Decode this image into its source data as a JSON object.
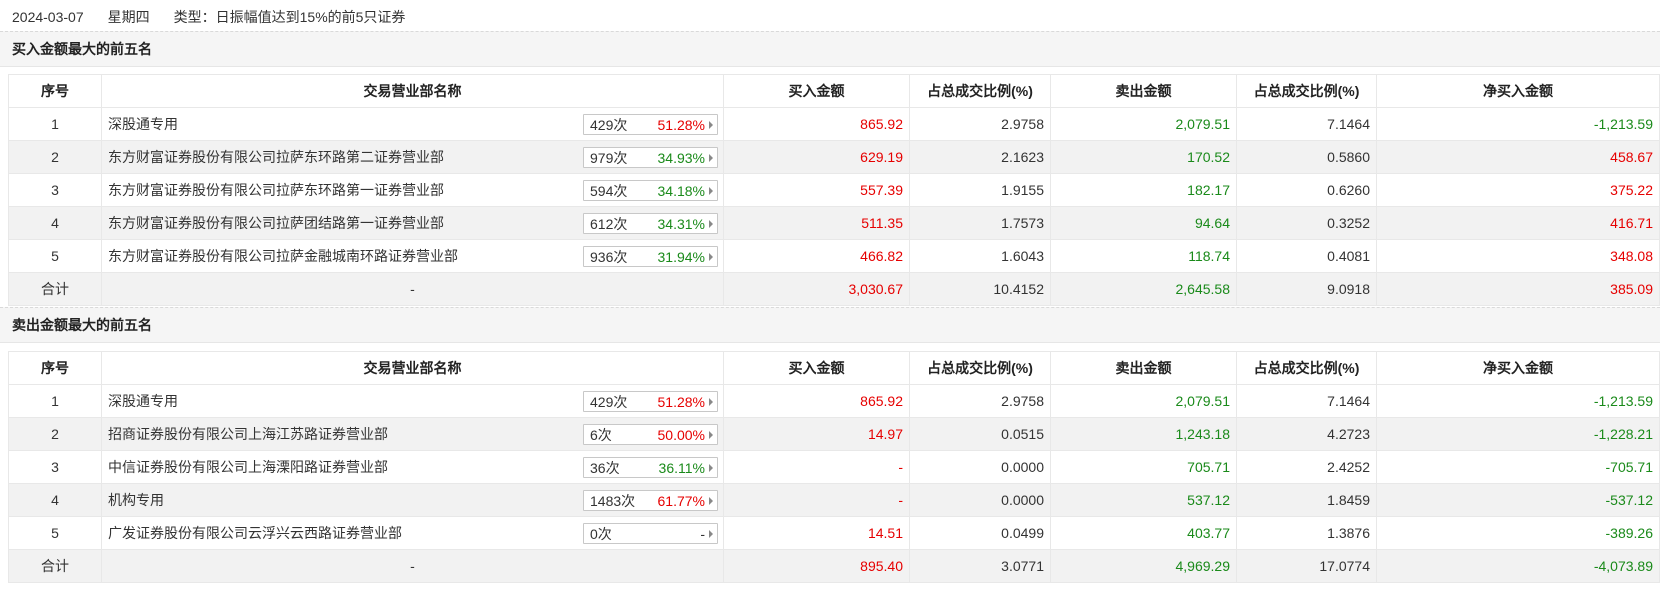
{
  "header": {
    "date": "2024-03-07",
    "weekday": "星期四",
    "type_label": "类型：日振幅值达到15%的前5只证券"
  },
  "columns": [
    "序号",
    "交易营业部名称",
    "买入金额",
    "占总成交比例(%)",
    "卖出金额",
    "占总成交比例(%)",
    "净买入金额"
  ],
  "colors": {
    "up": "#e60000",
    "down": "#1a8a1a",
    "alt_row": "#f2f2f2"
  },
  "buy_section": {
    "title": "买入金额最大的前五名",
    "rows": [
      {
        "no": "1",
        "name": "深股通专用",
        "count": "429次",
        "pct": "51.28%",
        "buy": "865.92",
        "buy_ratio": "2.9758",
        "sell": "2,079.51",
        "sell_ratio": "7.1464",
        "net": "-1,213.59"
      },
      {
        "no": "2",
        "name": "东方财富证券股份有限公司拉萨东环路第二证券营业部",
        "count": "979次",
        "pct": "34.93%",
        "buy": "629.19",
        "buy_ratio": "2.1623",
        "sell": "170.52",
        "sell_ratio": "0.5860",
        "net": "458.67"
      },
      {
        "no": "3",
        "name": "东方财富证券股份有限公司拉萨东环路第一证券营业部",
        "count": "594次",
        "pct": "34.18%",
        "buy": "557.39",
        "buy_ratio": "1.9155",
        "sell": "182.17",
        "sell_ratio": "0.6260",
        "net": "375.22"
      },
      {
        "no": "4",
        "name": "东方财富证券股份有限公司拉萨团结路第一证券营业部",
        "count": "612次",
        "pct": "34.31%",
        "buy": "511.35",
        "buy_ratio": "1.7573",
        "sell": "94.64",
        "sell_ratio": "0.3252",
        "net": "416.71"
      },
      {
        "no": "5",
        "name": "东方财富证券股份有限公司拉萨金融城南环路证券营业部",
        "count": "936次",
        "pct": "31.94%",
        "buy": "466.82",
        "buy_ratio": "1.6043",
        "sell": "118.74",
        "sell_ratio": "0.4081",
        "net": "348.08"
      }
    ],
    "total": {
      "label": "合计",
      "name": "-",
      "buy": "3,030.67",
      "buy_ratio": "10.4152",
      "sell": "2,645.58",
      "sell_ratio": "9.0918",
      "net": "385.09"
    }
  },
  "sell_section": {
    "title": "卖出金额最大的前五名",
    "rows": [
      {
        "no": "1",
        "name": "深股通专用",
        "count": "429次",
        "pct": "51.28%",
        "buy": "865.92",
        "buy_ratio": "2.9758",
        "sell": "2,079.51",
        "sell_ratio": "7.1464",
        "net": "-1,213.59"
      },
      {
        "no": "2",
        "name": "招商证券股份有限公司上海江苏路证券营业部",
        "count": "6次",
        "pct": "50.00%",
        "buy": "14.97",
        "buy_ratio": "0.0515",
        "sell": "1,243.18",
        "sell_ratio": "4.2723",
        "net": "-1,228.21"
      },
      {
        "no": "3",
        "name": "中信证券股份有限公司上海溧阳路证券营业部",
        "count": "36次",
        "pct": "36.11%",
        "buy": "-",
        "buy_ratio": "0.0000",
        "sell": "705.71",
        "sell_ratio": "2.4252",
        "net": "-705.71"
      },
      {
        "no": "4",
        "name": "机构专用",
        "count": "1483次",
        "pct": "61.77%",
        "buy": "-",
        "buy_ratio": "0.0000",
        "sell": "537.12",
        "sell_ratio": "1.8459",
        "net": "-537.12"
      },
      {
        "no": "5",
        "name": "广发证券股份有限公司云浮兴云西路证券营业部",
        "count": "0次",
        "pct": "-",
        "buy": "14.51",
        "buy_ratio": "0.0499",
        "sell": "403.77",
        "sell_ratio": "1.3876",
        "net": "-389.26"
      }
    ],
    "total": {
      "label": "合计",
      "name": "-",
      "buy": "895.40",
      "buy_ratio": "3.0771",
      "sell": "4,969.29",
      "sell_ratio": "17.0774",
      "net": "-4,073.89"
    }
  }
}
